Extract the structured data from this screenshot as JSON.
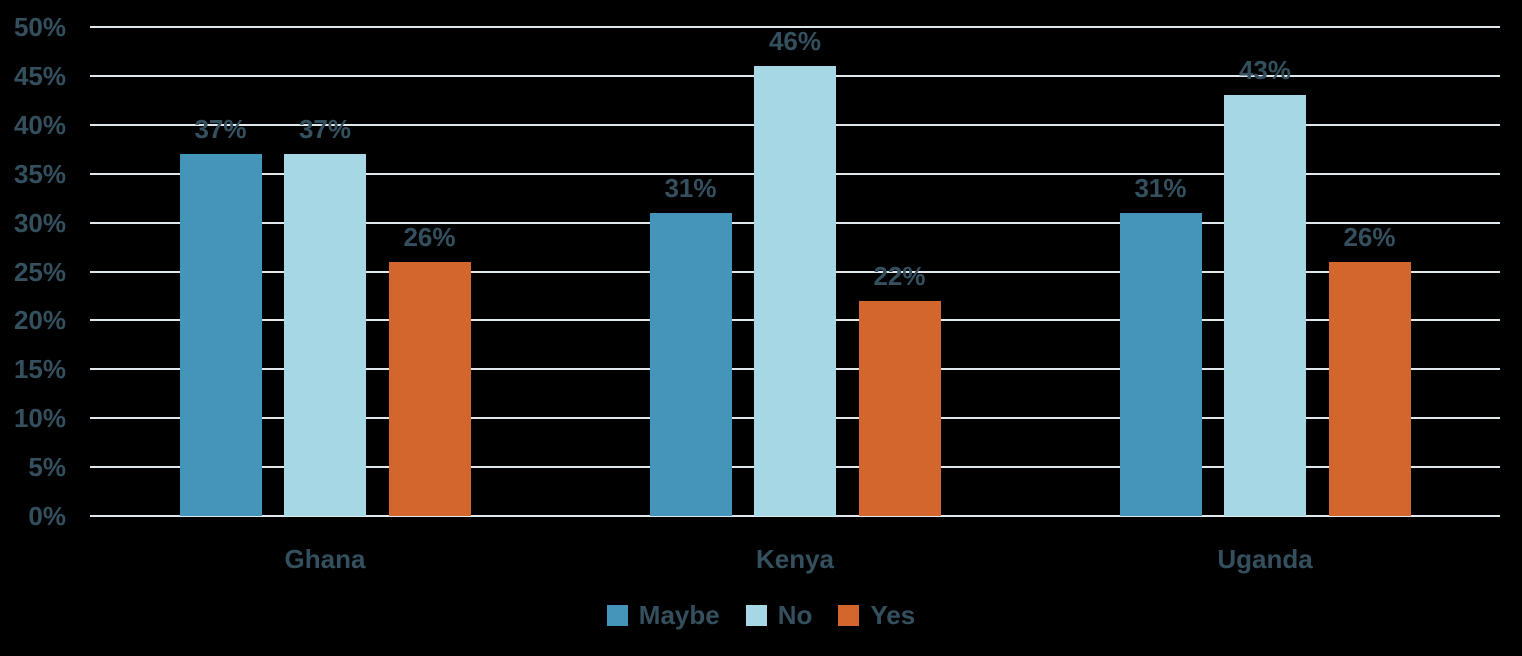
{
  "chart_data": {
    "type": "bar",
    "title": "",
    "xlabel": "",
    "ylabel": "",
    "categories": [
      "Ghana",
      "Kenya",
      "Uganda"
    ],
    "series": [
      {
        "name": "Maybe",
        "color": "#4495B9",
        "values": [
          37,
          31,
          31
        ]
      },
      {
        "name": "No",
        "color": "#A5D8E4",
        "values": [
          37,
          46,
          43
        ]
      },
      {
        "name": "Yes",
        "color": "#D2662D",
        "values": [
          26,
          22,
          26
        ]
      }
    ],
    "data_labels": {
      "Ghana": [
        "37%",
        "37%",
        "26%"
      ],
      "Kenya": [
        "31%",
        "46%",
        "22%"
      ],
      "Uganda": [
        "31%",
        "43%",
        "26%"
      ]
    },
    "value_suffix": "%",
    "y_axis": {
      "min": 0,
      "max": 50,
      "step": 5,
      "tick_labels": [
        "0%",
        "5%",
        "10%",
        "15%",
        "20%",
        "25%",
        "30%",
        "35%",
        "40%",
        "45%",
        "50%"
      ]
    },
    "grid": true,
    "legend_position": "bottom",
    "colors": {
      "background": "#000000",
      "gridline": "#DFE9ED",
      "text": "#34505F"
    }
  }
}
